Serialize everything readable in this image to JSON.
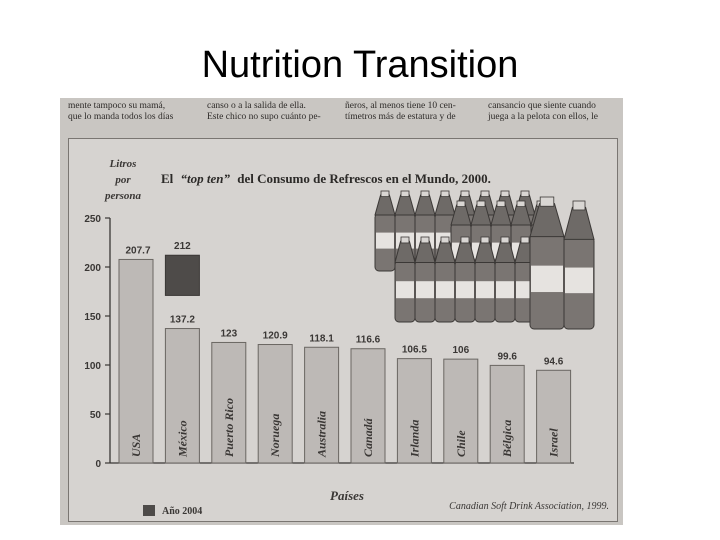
{
  "slide": {
    "title": "Nutrition Transition"
  },
  "page_text": {
    "col1": [
      "mente tampoco su mamá,",
      "que lo manda todos los días"
    ],
    "col2": [
      "canso o a la salida de ella.",
      "Este chico no supo cuánto pe-"
    ],
    "col3": [
      "ñeros, al menos tiene 10 cen-",
      "tímetros más de estatura y de"
    ],
    "col4": [
      "cansancio que siente cuando",
      "juega a la pelota con ellos, le"
    ]
  },
  "chart_data": {
    "type": "bar",
    "title_parts": [
      "El",
      "“top ten”",
      "del Consumo de Refrescos en el Mundo, 2000."
    ],
    "ylabel_lines": [
      "Litros",
      "por",
      "persona"
    ],
    "xlabel": "Países",
    "ylim": [
      0,
      250
    ],
    "yticks": [
      0,
      50,
      100,
      150,
      200,
      250
    ],
    "categories": [
      "USA",
      "México",
      "Puerto Rico",
      "Noruega",
      "Australia",
      "Canadá",
      "Irlanda",
      "Chile",
      "Bélgica",
      "Israel"
    ],
    "values": [
      207.7,
      137.2,
      123,
      120.9,
      118.1,
      116.6,
      106.5,
      106,
      99.6,
      94.6
    ],
    "value_labels": [
      "207.7",
      "137.2",
      "123",
      "120.9",
      "118.1",
      "116.6",
      "106.5",
      "106",
      "99.6",
      "94.6"
    ],
    "highlight": {
      "category": "México",
      "value": 212,
      "label": "212",
      "legend": "Año 2004"
    },
    "source": "Canadian Soft Drink Association, 1999.",
    "bar_color": "#bdb9b6",
    "highlight_color": "#4e4b49",
    "grid": false
  }
}
